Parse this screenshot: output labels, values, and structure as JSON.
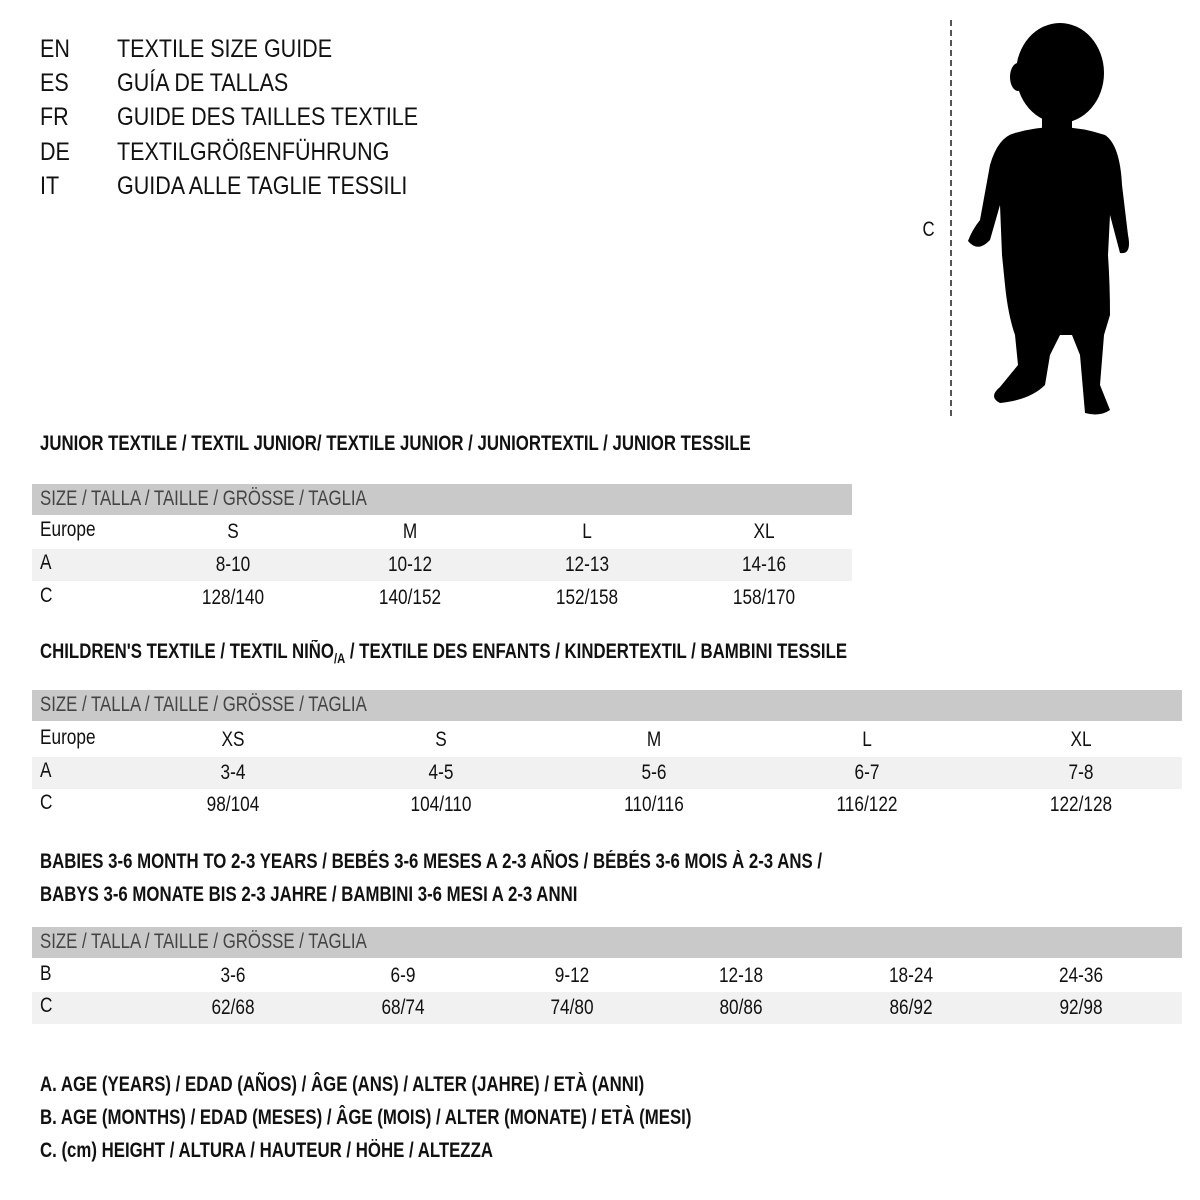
{
  "titles": [
    {
      "code": "EN",
      "text": "TEXTILE SIZE GUIDE"
    },
    {
      "code": "ES",
      "text": "GUÍA DE TALLAS"
    },
    {
      "code": "FR",
      "text": "GUIDE DES TAILLES TEXTILE"
    },
    {
      "code": "DE",
      "text": "TEXTILGRÖßENFÜHRUNG"
    },
    {
      "code": "IT",
      "text": "GUIDA ALLE TAGLIE TESSILI"
    }
  ],
  "figure": {
    "height_label": "C",
    "icon": "child-silhouette"
  },
  "colors": {
    "header_bar": "#c9c9c9",
    "stripe": "#f1f1f1"
  },
  "junior": {
    "title": "JUNIOR TEXTILE / TEXTIL JUNIOR/ TEXTILE JUNIOR / JUNIORTEXTIL / JUNIOR TESSILE",
    "header": "SIZE / TALLA / TAILLE / GRÖSSE / TAGLIA",
    "rows": [
      {
        "label": "Europe",
        "cells": [
          "S",
          "M",
          "L",
          "XL"
        ]
      },
      {
        "label": "A",
        "cells": [
          "8-10",
          "10-12",
          "12-13",
          "14-16"
        ]
      },
      {
        "label": "C",
        "cells": [
          "128/140",
          "140/152",
          "152/158",
          "158/170"
        ]
      }
    ]
  },
  "children": {
    "title_main": "CHILDREN'S TEXTILE / TEXTIL NIÑO",
    "title_sub": "/A",
    "title_rest": " / TEXTILE DES ENFANTS / KINDERTEXTIL / BAMBINI TESSILE",
    "header": "SIZE / TALLA / TAILLE / GRÖSSE / TAGLIA",
    "rows": [
      {
        "label": "Europe",
        "cells": [
          "XS",
          "S",
          "M",
          "L",
          "XL"
        ]
      },
      {
        "label": "A",
        "cells": [
          "3-4",
          "4-5",
          "5-6",
          "6-7",
          "7-8"
        ]
      },
      {
        "label": "C",
        "cells": [
          "98/104",
          "104/110",
          "110/116",
          "116/122",
          "122/128"
        ]
      }
    ]
  },
  "babies": {
    "title_line1": "BABIES 3-6 MONTH TO 2-3 YEARS / BEBÉS 3-6 MESES A 2-3 AÑOS / BÉBÉS 3-6 MOIS À 2-3 ANS /",
    "title_line2": "BABYS 3-6 MONATE BIS 2-3 JAHRE / BAMBINI 3-6 MESI A 2-3 ANNI",
    "header": "SIZE / TALLA / TAILLE / GRÖSSE / TAGLIA",
    "rows": [
      {
        "label": "B",
        "cells": [
          "3-6",
          "6-9",
          "9-12",
          "12-18",
          "18-24",
          "24-36"
        ]
      },
      {
        "label": "C",
        "cells": [
          "62/68",
          "68/74",
          "74/80",
          "80/86",
          "86/92",
          "92/98"
        ]
      }
    ]
  },
  "legend": [
    "A. AGE (YEARS) / EDAD (AÑOS) / ÂGE (ANS) / ALTER (JAHRE) / ETÀ (ANNI)",
    "B. AGE (MONTHS) / EDAD (MESES) / ÂGE (MOIS) / ALTER (MONATE) / ETÀ (MESI)",
    "C. (cm) HEIGHT / ALTURA / HAUTEUR / HÖHE / ALTEZZA"
  ]
}
